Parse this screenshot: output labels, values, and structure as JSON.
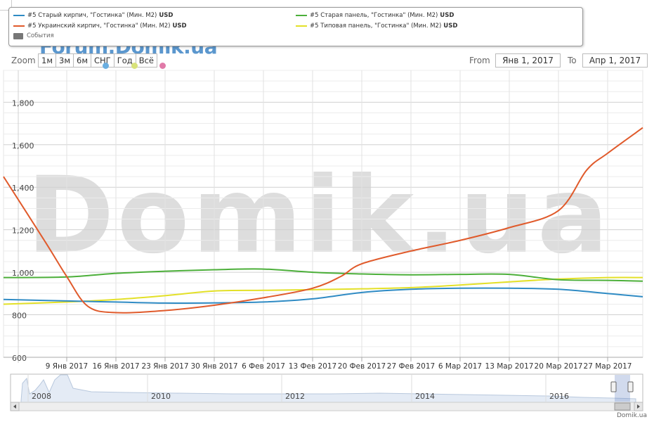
{
  "legend": {
    "items": [
      {
        "label": "#5 Старый кирпич, \"Гостинка\" (Мин. M2)",
        "unit": "USD",
        "color": "#2f8bc4"
      },
      {
        "label": "#5 Украинский кирпич, \"Гостинка\" (Мин. M2)",
        "unit": "USD",
        "color": "#e05a2b"
      },
      {
        "label": "#5 Старая панель, \"Гостинка\" (Мин. M2)",
        "unit": "USD",
        "color": "#4caf3a"
      },
      {
        "label": "#5 Типовая панель, \"Гостинка\" (Мин. M2)",
        "unit": "USD",
        "color": "#e3e028"
      }
    ],
    "events_label": "События"
  },
  "zoom": {
    "label": "Zoom",
    "buttons": [
      "1м",
      "3м",
      "6м",
      "СНГ",
      "Год",
      "Всё"
    ]
  },
  "range": {
    "from_label": "From",
    "from_value": "Янв 1, 2017",
    "to_label": "To",
    "to_value": "Апр 1, 2017"
  },
  "watermark": {
    "top": "Forum.Domik.ua",
    "center": "Domik.ua"
  },
  "credit": "Domik.ua",
  "navigator": {
    "years": [
      "2008",
      "2010",
      "2012",
      "2014",
      "2016"
    ]
  },
  "chart_data": {
    "type": "line",
    "title": "",
    "xlabel": "",
    "ylabel": "",
    "ylim": [
      600,
      1950
    ],
    "y_ticks": [
      600,
      800,
      1000,
      1200,
      1400,
      1600,
      1800
    ],
    "y_tick_labels": [
      "600",
      "800",
      "1,000",
      "1,200",
      "1,400",
      "1,600",
      "1,800"
    ],
    "x_range": [
      "2016-12-31",
      "2017-04-01"
    ],
    "x_ticks": [
      "2017-01-09",
      "2017-01-16",
      "2017-01-23",
      "2017-01-30",
      "2017-02-06",
      "2017-02-13",
      "2017-02-20",
      "2017-02-27",
      "2017-03-06",
      "2017-03-13",
      "2017-03-20",
      "2017-03-27"
    ],
    "x_tick_labels": [
      "9 Янв 2017",
      "16 Янв 2017",
      "23 Янв 2017",
      "30 Янв 2017",
      "6 Фев 2017",
      "13 Фев 2017",
      "20 Фев 2017",
      "27 Фев 2017",
      "6 Мар 2017",
      "13 Мар 2017",
      "20 Мар 2017",
      "27 Мар 2017"
    ],
    "grid": true,
    "legend_position": "top",
    "series": [
      {
        "name": "#5 Старый кирпич, \"Гостинка\" (Мин. M2)",
        "color": "#2f8bc4",
        "x": [
          "2016-12-31",
          "2017-01-09",
          "2017-01-16",
          "2017-01-23",
          "2017-01-30",
          "2017-02-06",
          "2017-02-13",
          "2017-02-20",
          "2017-02-27",
          "2017-03-06",
          "2017-03-13",
          "2017-03-20",
          "2017-03-27",
          "2017-04-01"
        ],
        "values": [
          872,
          865,
          860,
          855,
          856,
          860,
          875,
          905,
          920,
          925,
          925,
          920,
          900,
          885
        ]
      },
      {
        "name": "#5 Украинский кирпич, \"Гостинка\" (Мин. M2)",
        "color": "#e05a2b",
        "x": [
          "2016-12-31",
          "2017-01-06",
          "2017-01-09",
          "2017-01-12",
          "2017-01-16",
          "2017-01-23",
          "2017-01-30",
          "2017-02-06",
          "2017-02-13",
          "2017-02-17",
          "2017-02-20",
          "2017-02-27",
          "2017-03-06",
          "2017-03-13",
          "2017-03-20",
          "2017-03-24",
          "2017-03-27",
          "2017-04-01"
        ],
        "values": [
          1450,
          1140,
          980,
          840,
          810,
          820,
          845,
          880,
          925,
          980,
          1040,
          1100,
          1150,
          1210,
          1290,
          1480,
          1560,
          1680
        ]
      },
      {
        "name": "#5 Старая панель, \"Гостинка\" (Мин. M2)",
        "color": "#4caf3a",
        "x": [
          "2016-12-31",
          "2017-01-09",
          "2017-01-16",
          "2017-01-23",
          "2017-01-30",
          "2017-02-06",
          "2017-02-13",
          "2017-02-20",
          "2017-02-27",
          "2017-03-06",
          "2017-03-13",
          "2017-03-20",
          "2017-03-27",
          "2017-04-01"
        ],
        "values": [
          975,
          978,
          995,
          1005,
          1012,
          1015,
          1000,
          992,
          988,
          990,
          990,
          965,
          962,
          958
        ]
      },
      {
        "name": "#5 Типовая панель, \"Гостинка\" (Мин. M2)",
        "color": "#e3e028",
        "x": [
          "2016-12-31",
          "2017-01-09",
          "2017-01-16",
          "2017-01-23",
          "2017-01-30",
          "2017-02-06",
          "2017-02-13",
          "2017-02-20",
          "2017-02-27",
          "2017-03-06",
          "2017-03-13",
          "2017-03-20",
          "2017-03-27",
          "2017-04-01"
        ],
        "values": [
          850,
          860,
          872,
          890,
          912,
          915,
          918,
          922,
          928,
          940,
          955,
          968,
          975,
          975
        ]
      }
    ]
  }
}
